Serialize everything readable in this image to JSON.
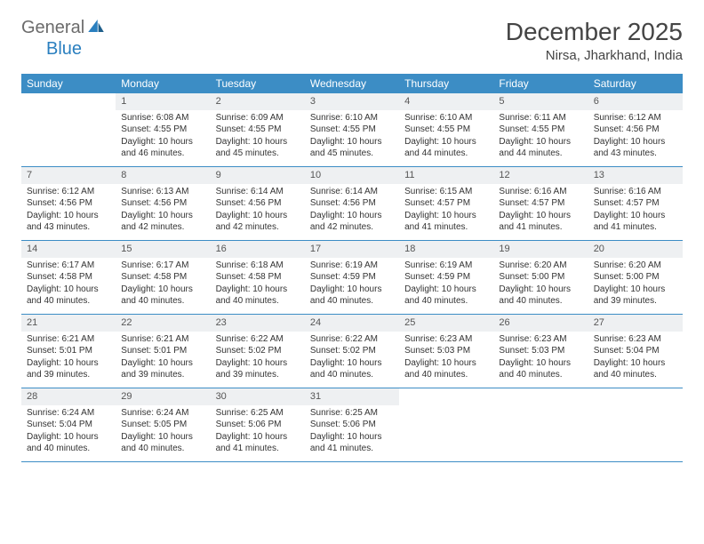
{
  "brand": {
    "part1": "General",
    "part2": "Blue"
  },
  "title": "December 2025",
  "location": "Nirsa, Jharkhand, India",
  "colors": {
    "header_bg": "#3c8dc5",
    "header_text": "#ffffff",
    "daynum_bg": "#eef0f2",
    "border": "#3c8dc5",
    "text": "#333333",
    "brand_gray": "#6b6b6b",
    "brand_blue": "#2a7fbf",
    "background": "#ffffff"
  },
  "fonts": {
    "title_size": 28,
    "location_size": 15,
    "dayheader_size": 12,
    "cell_size": 10
  },
  "day_names": [
    "Sunday",
    "Monday",
    "Tuesday",
    "Wednesday",
    "Thursday",
    "Friday",
    "Saturday"
  ],
  "weeks": [
    [
      {
        "empty": true
      },
      {
        "n": "1",
        "sr": "Sunrise: 6:08 AM",
        "ss": "Sunset: 4:55 PM",
        "d1": "Daylight: 10 hours",
        "d2": "and 46 minutes."
      },
      {
        "n": "2",
        "sr": "Sunrise: 6:09 AM",
        "ss": "Sunset: 4:55 PM",
        "d1": "Daylight: 10 hours",
        "d2": "and 45 minutes."
      },
      {
        "n": "3",
        "sr": "Sunrise: 6:10 AM",
        "ss": "Sunset: 4:55 PM",
        "d1": "Daylight: 10 hours",
        "d2": "and 45 minutes."
      },
      {
        "n": "4",
        "sr": "Sunrise: 6:10 AM",
        "ss": "Sunset: 4:55 PM",
        "d1": "Daylight: 10 hours",
        "d2": "and 44 minutes."
      },
      {
        "n": "5",
        "sr": "Sunrise: 6:11 AM",
        "ss": "Sunset: 4:55 PM",
        "d1": "Daylight: 10 hours",
        "d2": "and 44 minutes."
      },
      {
        "n": "6",
        "sr": "Sunrise: 6:12 AM",
        "ss": "Sunset: 4:56 PM",
        "d1": "Daylight: 10 hours",
        "d2": "and 43 minutes."
      }
    ],
    [
      {
        "n": "7",
        "sr": "Sunrise: 6:12 AM",
        "ss": "Sunset: 4:56 PM",
        "d1": "Daylight: 10 hours",
        "d2": "and 43 minutes."
      },
      {
        "n": "8",
        "sr": "Sunrise: 6:13 AM",
        "ss": "Sunset: 4:56 PM",
        "d1": "Daylight: 10 hours",
        "d2": "and 42 minutes."
      },
      {
        "n": "9",
        "sr": "Sunrise: 6:14 AM",
        "ss": "Sunset: 4:56 PM",
        "d1": "Daylight: 10 hours",
        "d2": "and 42 minutes."
      },
      {
        "n": "10",
        "sr": "Sunrise: 6:14 AM",
        "ss": "Sunset: 4:56 PM",
        "d1": "Daylight: 10 hours",
        "d2": "and 42 minutes."
      },
      {
        "n": "11",
        "sr": "Sunrise: 6:15 AM",
        "ss": "Sunset: 4:57 PM",
        "d1": "Daylight: 10 hours",
        "d2": "and 41 minutes."
      },
      {
        "n": "12",
        "sr": "Sunrise: 6:16 AM",
        "ss": "Sunset: 4:57 PM",
        "d1": "Daylight: 10 hours",
        "d2": "and 41 minutes."
      },
      {
        "n": "13",
        "sr": "Sunrise: 6:16 AM",
        "ss": "Sunset: 4:57 PM",
        "d1": "Daylight: 10 hours",
        "d2": "and 41 minutes."
      }
    ],
    [
      {
        "n": "14",
        "sr": "Sunrise: 6:17 AM",
        "ss": "Sunset: 4:58 PM",
        "d1": "Daylight: 10 hours",
        "d2": "and 40 minutes."
      },
      {
        "n": "15",
        "sr": "Sunrise: 6:17 AM",
        "ss": "Sunset: 4:58 PM",
        "d1": "Daylight: 10 hours",
        "d2": "and 40 minutes."
      },
      {
        "n": "16",
        "sr": "Sunrise: 6:18 AM",
        "ss": "Sunset: 4:58 PM",
        "d1": "Daylight: 10 hours",
        "d2": "and 40 minutes."
      },
      {
        "n": "17",
        "sr": "Sunrise: 6:19 AM",
        "ss": "Sunset: 4:59 PM",
        "d1": "Daylight: 10 hours",
        "d2": "and 40 minutes."
      },
      {
        "n": "18",
        "sr": "Sunrise: 6:19 AM",
        "ss": "Sunset: 4:59 PM",
        "d1": "Daylight: 10 hours",
        "d2": "and 40 minutes."
      },
      {
        "n": "19",
        "sr": "Sunrise: 6:20 AM",
        "ss": "Sunset: 5:00 PM",
        "d1": "Daylight: 10 hours",
        "d2": "and 40 minutes."
      },
      {
        "n": "20",
        "sr": "Sunrise: 6:20 AM",
        "ss": "Sunset: 5:00 PM",
        "d1": "Daylight: 10 hours",
        "d2": "and 39 minutes."
      }
    ],
    [
      {
        "n": "21",
        "sr": "Sunrise: 6:21 AM",
        "ss": "Sunset: 5:01 PM",
        "d1": "Daylight: 10 hours",
        "d2": "and 39 minutes."
      },
      {
        "n": "22",
        "sr": "Sunrise: 6:21 AM",
        "ss": "Sunset: 5:01 PM",
        "d1": "Daylight: 10 hours",
        "d2": "and 39 minutes."
      },
      {
        "n": "23",
        "sr": "Sunrise: 6:22 AM",
        "ss": "Sunset: 5:02 PM",
        "d1": "Daylight: 10 hours",
        "d2": "and 39 minutes."
      },
      {
        "n": "24",
        "sr": "Sunrise: 6:22 AM",
        "ss": "Sunset: 5:02 PM",
        "d1": "Daylight: 10 hours",
        "d2": "and 40 minutes."
      },
      {
        "n": "25",
        "sr": "Sunrise: 6:23 AM",
        "ss": "Sunset: 5:03 PM",
        "d1": "Daylight: 10 hours",
        "d2": "and 40 minutes."
      },
      {
        "n": "26",
        "sr": "Sunrise: 6:23 AM",
        "ss": "Sunset: 5:03 PM",
        "d1": "Daylight: 10 hours",
        "d2": "and 40 minutes."
      },
      {
        "n": "27",
        "sr": "Sunrise: 6:23 AM",
        "ss": "Sunset: 5:04 PM",
        "d1": "Daylight: 10 hours",
        "d2": "and 40 minutes."
      }
    ],
    [
      {
        "n": "28",
        "sr": "Sunrise: 6:24 AM",
        "ss": "Sunset: 5:04 PM",
        "d1": "Daylight: 10 hours",
        "d2": "and 40 minutes."
      },
      {
        "n": "29",
        "sr": "Sunrise: 6:24 AM",
        "ss": "Sunset: 5:05 PM",
        "d1": "Daylight: 10 hours",
        "d2": "and 40 minutes."
      },
      {
        "n": "30",
        "sr": "Sunrise: 6:25 AM",
        "ss": "Sunset: 5:06 PM",
        "d1": "Daylight: 10 hours",
        "d2": "and 41 minutes."
      },
      {
        "n": "31",
        "sr": "Sunrise: 6:25 AM",
        "ss": "Sunset: 5:06 PM",
        "d1": "Daylight: 10 hours",
        "d2": "and 41 minutes."
      },
      {
        "empty": true
      },
      {
        "empty": true
      },
      {
        "empty": true
      }
    ]
  ]
}
